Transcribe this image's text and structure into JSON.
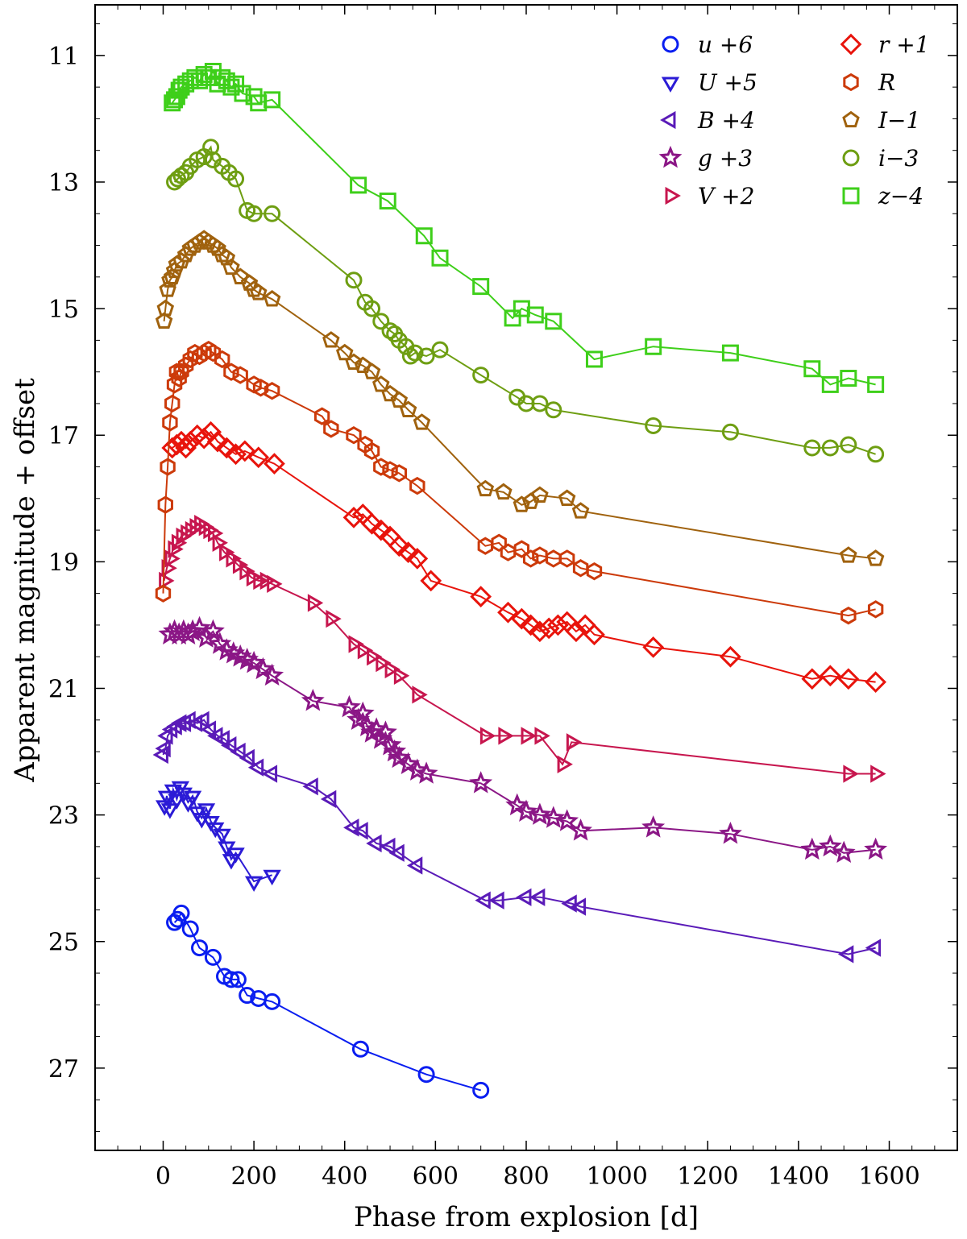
{
  "chart_data": {
    "type": "scatter",
    "title": "",
    "xlabel": "Phase from explosion [d]",
    "ylabel": "Apparent magnitude + offset",
    "xlim": [
      -150,
      1750
    ],
    "ylim": [
      28.3,
      10.2
    ],
    "y_inverted": true,
    "x_ticks": [
      0,
      200,
      400,
      600,
      800,
      1000,
      1200,
      1400,
      1600
    ],
    "x_tick_labels": [
      "0",
      "200",
      "400",
      "600",
      "800",
      "1000",
      "1200",
      "1400",
      "1600"
    ],
    "y_ticks": [
      11,
      13,
      15,
      17,
      19,
      21,
      23,
      25,
      27
    ],
    "y_tick_labels": [
      "11",
      "13",
      "15",
      "17",
      "19",
      "21",
      "23",
      "25",
      "27"
    ],
    "grid": false,
    "legend_position": "top-right",
    "series": [
      {
        "name": "u+6",
        "legend": "u +6",
        "color": "#0a1ef0",
        "marker": "circle",
        "x": [
          25,
          32,
          40,
          60,
          80,
          110,
          135,
          150,
          165,
          185,
          210,
          240,
          435,
          580,
          700
        ],
        "y": [
          24.7,
          24.65,
          24.55,
          24.8,
          25.1,
          25.25,
          25.55,
          25.6,
          25.6,
          25.85,
          25.9,
          25.95,
          26.7,
          27.1,
          27.35
        ]
      },
      {
        "name": "U+5",
        "legend": "U +5",
        "color": "#2b1bd6",
        "marker": "triangle-down",
        "x": [
          3,
          8,
          15,
          22,
          30,
          38,
          45,
          55,
          65,
          75,
          85,
          95,
          105,
          115,
          130,
          140,
          150,
          160,
          200,
          240
        ],
        "y": [
          22.85,
          22.7,
          22.9,
          22.6,
          22.75,
          22.55,
          22.65,
          22.8,
          22.7,
          22.95,
          23.05,
          22.9,
          23.1,
          23.2,
          23.3,
          23.5,
          23.7,
          23.6,
          24.05,
          23.95
        ]
      },
      {
        "name": "B+4",
        "legend": "B +4",
        "color": "#5a1bb8",
        "marker": "triangle-left",
        "x": [
          0,
          5,
          10,
          20,
          30,
          40,
          50,
          60,
          75,
          90,
          105,
          120,
          135,
          150,
          170,
          190,
          210,
          240,
          330,
          370,
          420,
          440,
          470,
          500,
          520,
          560,
          710,
          740,
          800,
          830,
          900,
          920,
          1510,
          1570
        ],
        "y": [
          22.05,
          21.95,
          21.75,
          21.65,
          21.6,
          21.55,
          21.55,
          21.5,
          21.55,
          21.5,
          21.65,
          21.75,
          21.8,
          21.9,
          22.0,
          22.1,
          22.25,
          22.35,
          22.55,
          22.75,
          23.2,
          23.25,
          23.45,
          23.5,
          23.6,
          23.8,
          24.35,
          24.35,
          24.3,
          24.3,
          24.4,
          24.45,
          25.2,
          25.1
        ]
      },
      {
        "name": "g+3",
        "legend": "g +3",
        "color": "#8b1786",
        "marker": "star",
        "x": [
          15,
          25,
          35,
          45,
          55,
          65,
          80,
          95,
          110,
          125,
          140,
          155,
          170,
          185,
          200,
          220,
          240,
          330,
          410,
          430,
          440,
          450,
          460,
          470,
          480,
          490,
          500,
          510,
          520,
          540,
          560,
          580,
          700,
          780,
          800,
          830,
          860,
          890,
          920,
          1080,
          1250,
          1430,
          1470,
          1500,
          1570
        ],
        "y": [
          20.15,
          20.1,
          20.15,
          20.1,
          20.15,
          20.1,
          20.05,
          20.2,
          20.1,
          20.3,
          20.4,
          20.45,
          20.5,
          20.55,
          20.6,
          20.7,
          20.8,
          21.2,
          21.3,
          21.5,
          21.4,
          21.6,
          21.7,
          21.65,
          21.8,
          21.7,
          21.9,
          22.0,
          22.1,
          22.2,
          22.3,
          22.35,
          22.5,
          22.85,
          22.95,
          23.0,
          23.05,
          23.1,
          23.25,
          23.2,
          23.3,
          23.55,
          23.5,
          23.6,
          23.55
        ]
      },
      {
        "name": "V+2",
        "legend": "V +2",
        "color": "#c7164e",
        "marker": "triangle-right",
        "x": [
          2,
          8,
          15,
          22,
          30,
          40,
          50,
          60,
          70,
          80,
          90,
          100,
          110,
          120,
          135,
          150,
          165,
          180,
          195,
          210,
          225,
          240,
          330,
          370,
          420,
          440,
          460,
          480,
          500,
          520,
          560,
          710,
          750,
          800,
          830,
          880,
          900,
          1510,
          1570
        ],
        "y": [
          19.3,
          19.1,
          18.95,
          18.8,
          18.7,
          18.6,
          18.55,
          18.5,
          18.45,
          18.4,
          18.45,
          18.5,
          18.55,
          18.7,
          18.85,
          18.95,
          19.05,
          19.15,
          19.25,
          19.3,
          19.3,
          19.35,
          19.65,
          19.9,
          20.3,
          20.4,
          20.5,
          20.6,
          20.7,
          20.8,
          21.1,
          21.75,
          21.75,
          21.75,
          21.75,
          22.2,
          21.85,
          22.35,
          22.35
        ]
      },
      {
        "name": "r+1",
        "legend": "r +1",
        "color": "#e8140c",
        "marker": "diamond",
        "x": [
          20,
          30,
          40,
          50,
          60,
          75,
          90,
          105,
          120,
          140,
          160,
          180,
          210,
          245,
          420,
          440,
          460,
          480,
          500,
          520,
          540,
          560,
          590,
          700,
          760,
          790,
          810,
          830,
          850,
          870,
          890,
          910,
          930,
          950,
          1080,
          1250,
          1430,
          1470,
          1510,
          1570
        ],
        "y": [
          17.2,
          17.15,
          17.1,
          17.2,
          17.1,
          17.0,
          17.05,
          16.95,
          17.1,
          17.2,
          17.3,
          17.25,
          17.35,
          17.45,
          18.3,
          18.25,
          18.4,
          18.5,
          18.6,
          18.75,
          18.85,
          18.95,
          19.3,
          19.55,
          19.8,
          19.9,
          20.0,
          20.1,
          20.05,
          20.0,
          19.95,
          20.1,
          20.0,
          20.15,
          20.35,
          20.5,
          20.85,
          20.8,
          20.85,
          20.9
        ]
      },
      {
        "name": "R",
        "legend": "R",
        "color": "#cc3a0a",
        "marker": "hexagon",
        "x": [
          0,
          5,
          10,
          15,
          20,
          25,
          30,
          35,
          40,
          50,
          60,
          70,
          80,
          90,
          100,
          110,
          130,
          150,
          170,
          200,
          215,
          240,
          350,
          370,
          420,
          445,
          460,
          480,
          500,
          520,
          560,
          710,
          740,
          760,
          790,
          810,
          830,
          860,
          890,
          920,
          950,
          1510,
          1570
        ],
        "y": [
          19.5,
          18.1,
          17.5,
          16.8,
          16.5,
          16.2,
          16.0,
          16.1,
          16.0,
          15.9,
          15.8,
          15.7,
          15.75,
          15.7,
          15.65,
          15.7,
          15.8,
          16.0,
          16.05,
          16.2,
          16.25,
          16.3,
          16.7,
          16.9,
          17.0,
          17.15,
          17.25,
          17.5,
          17.55,
          17.6,
          17.8,
          18.75,
          18.7,
          18.85,
          18.8,
          18.95,
          18.9,
          18.95,
          18.95,
          19.1,
          19.15,
          19.85,
          19.75
        ]
      },
      {
        "name": "I-1",
        "legend": "I−1",
        "color": "#a0620e",
        "marker": "pentagon",
        "x": [
          2,
          5,
          10,
          15,
          20,
          25,
          30,
          40,
          50,
          60,
          70,
          80,
          90,
          100,
          110,
          120,
          130,
          140,
          150,
          170,
          190,
          200,
          210,
          240,
          370,
          400,
          420,
          440,
          460,
          480,
          500,
          520,
          540,
          570,
          710,
          750,
          790,
          810,
          830,
          890,
          920,
          1510,
          1570
        ],
        "y": [
          15.2,
          15.0,
          14.7,
          14.55,
          14.5,
          14.4,
          14.3,
          14.25,
          14.15,
          14.05,
          14.0,
          13.95,
          13.9,
          13.95,
          14.0,
          14.05,
          14.15,
          14.2,
          14.35,
          14.5,
          14.6,
          14.7,
          14.75,
          14.85,
          15.5,
          15.7,
          15.85,
          15.9,
          16.0,
          16.2,
          16.35,
          16.45,
          16.6,
          16.8,
          17.85,
          17.9,
          18.1,
          18.05,
          17.95,
          18.0,
          18.2,
          18.9,
          18.95
        ]
      },
      {
        "name": "i-3",
        "legend": "i−3",
        "color": "#6e9e12",
        "marker": "circle",
        "x": [
          25,
          32,
          40,
          50,
          60,
          75,
          90,
          105,
          110,
          130,
          145,
          160,
          185,
          200,
          240,
          420,
          445,
          460,
          480,
          500,
          510,
          520,
          535,
          545,
          555,
          580,
          610,
          700,
          780,
          800,
          830,
          860,
          1080,
          1250,
          1430,
          1470,
          1510,
          1570
        ],
        "y": [
          13.0,
          12.95,
          12.9,
          12.85,
          12.75,
          12.65,
          12.6,
          12.45,
          12.65,
          12.75,
          12.85,
          12.95,
          13.45,
          13.5,
          13.5,
          14.55,
          14.9,
          15.0,
          15.2,
          15.35,
          15.4,
          15.5,
          15.6,
          15.75,
          15.7,
          15.75,
          15.65,
          16.05,
          16.4,
          16.5,
          16.5,
          16.6,
          16.85,
          16.95,
          17.2,
          17.2,
          17.15,
          17.3
        ]
      },
      {
        "name": "z-4",
        "legend": "z−4",
        "color": "#3ecf1a",
        "marker": "square",
        "x": [
          20,
          25,
          30,
          35,
          40,
          50,
          60,
          70,
          80,
          90,
          100,
          110,
          120,
          130,
          140,
          150,
          160,
          175,
          200,
          210,
          240,
          430,
          495,
          575,
          610,
          700,
          770,
          790,
          820,
          860,
          950,
          1080,
          1250,
          1430,
          1470,
          1510,
          1570
        ],
        "y": [
          11.75,
          11.7,
          11.65,
          11.55,
          11.5,
          11.45,
          11.4,
          11.35,
          11.4,
          11.3,
          11.35,
          11.25,
          11.45,
          11.35,
          11.4,
          11.5,
          11.45,
          11.6,
          11.65,
          11.75,
          11.7,
          13.05,
          13.3,
          13.85,
          14.2,
          14.65,
          15.15,
          15.0,
          15.1,
          15.2,
          15.8,
          15.6,
          15.7,
          15.95,
          16.2,
          16.1,
          16.2
        ]
      }
    ]
  }
}
